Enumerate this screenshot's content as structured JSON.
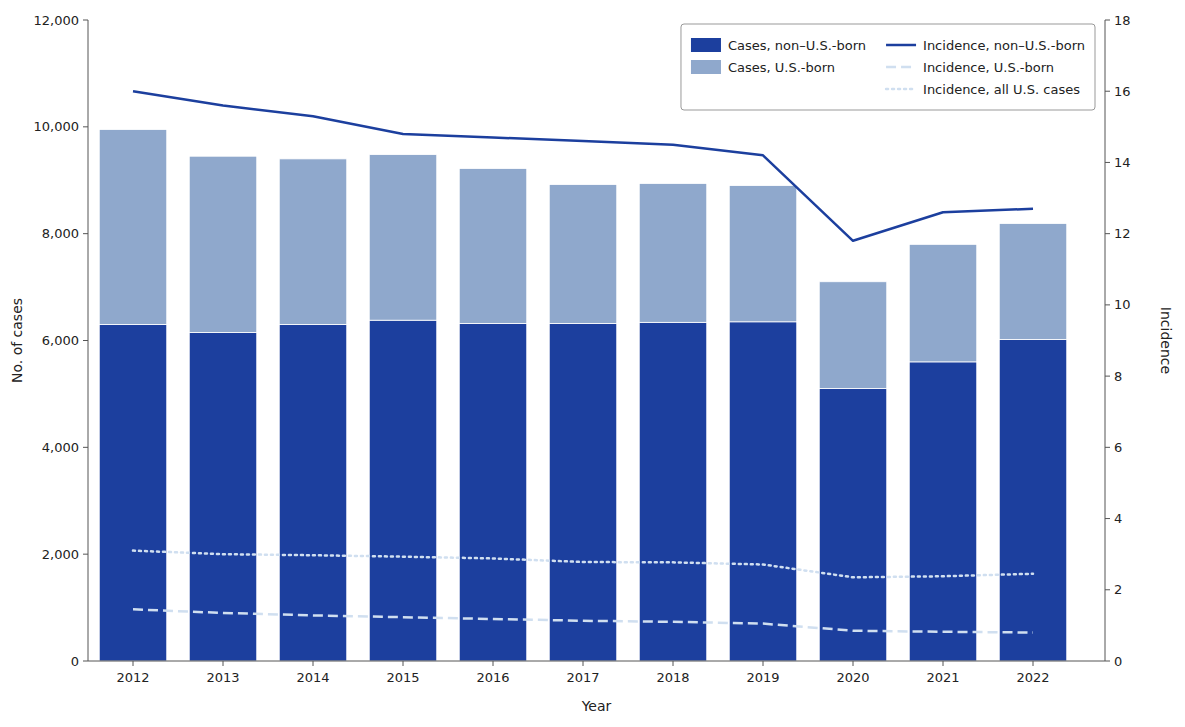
{
  "chart_data": {
    "type": "bar",
    "stacked": true,
    "grid": false,
    "legend": "upper right",
    "xlabel": "Year",
    "ylabel": "No. of cases",
    "y2label": "Incidence",
    "x": [
      2012,
      2013,
      2014,
      2015,
      2016,
      2017,
      2018,
      2019,
      2020,
      2021,
      2022
    ],
    "xlim": [
      2011.5,
      2022.8
    ],
    "xticks": [
      2012,
      2013,
      2014,
      2015,
      2016,
      2017,
      2018,
      2019,
      2020,
      2021,
      2022
    ],
    "ylim": [
      0,
      12000
    ],
    "yticks": [
      0,
      {
        "value": 2000,
        "label": "2,000"
      },
      {
        "value": 4000,
        "label": "4,000"
      },
      {
        "value": 6000,
        "label": "6,000"
      },
      {
        "value": 8000,
        "label": "8,000"
      },
      {
        "value": 10000,
        "label": "10,000"
      },
      {
        "value": 12000,
        "label": "12,000"
      }
    ],
    "y2lim": [
      0,
      18
    ],
    "y2ticks": [
      0,
      2,
      4,
      6,
      8,
      10,
      12,
      14,
      16,
      18
    ],
    "series": [
      {
        "name": "Cases, non–U.S.-born",
        "type": "bar",
        "color": "#1c3f9e",
        "values": [
          6300,
          6150,
          6300,
          6380,
          6320,
          6320,
          6340,
          6350,
          5100,
          5600,
          6020
        ]
      },
      {
        "name": "Cases, U.S.-born",
        "type": "bar",
        "color": "#8fa8cc",
        "values": [
          3650,
          3300,
          3100,
          3100,
          2900,
          2600,
          2600,
          2550,
          2000,
          2200,
          2170
        ]
      },
      {
        "name": "Incidence, non–U.S.-born",
        "type": "line",
        "axis": "y2",
        "color": "#1c3f9e",
        "line_style": "solid",
        "values": [
          16.0,
          15.6,
          15.3,
          14.8,
          14.7,
          14.6,
          14.5,
          14.2,
          11.8,
          12.6,
          12.7
        ]
      },
      {
        "name": "Incidence, U.S.-born",
        "type": "line",
        "axis": "y2",
        "color": "#d0dff0",
        "line_style": "dashed",
        "values": [
          1.45,
          1.35,
          1.28,
          1.23,
          1.18,
          1.13,
          1.1,
          1.05,
          0.85,
          0.82,
          0.8
        ]
      },
      {
        "name": "Incidence, all U.S. cases",
        "type": "line",
        "axis": "y2",
        "color": "#d0dff0",
        "line_style": "dotted",
        "values": [
          3.1,
          3.0,
          2.97,
          2.93,
          2.88,
          2.78,
          2.77,
          2.71,
          2.35,
          2.38,
          2.45
        ]
      }
    ]
  }
}
